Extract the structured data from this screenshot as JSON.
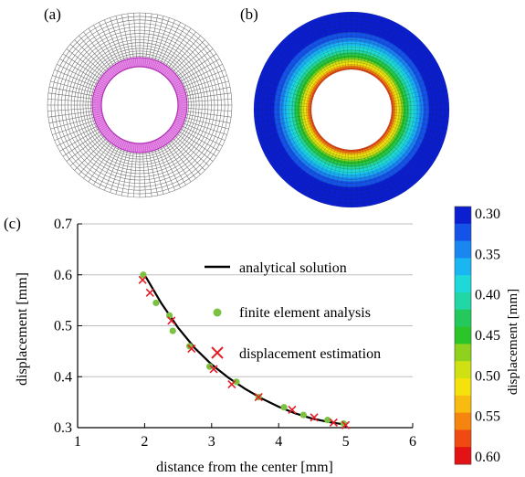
{
  "panels": {
    "a": {
      "label": "(a)"
    },
    "b": {
      "label": "(b)"
    },
    "c": {
      "label": "(c)"
    }
  },
  "colorbar": {
    "title": "displacement [mm]",
    "ticks": [
      "0.30",
      "0.35",
      "0.40",
      "0.45",
      "0.50",
      "0.55",
      "0.60"
    ],
    "colors": [
      "#0b1fd0",
      "#1553e8",
      "#1a86f0",
      "#19b6f2",
      "#1fd8d8",
      "#22d6a6",
      "#23c95b",
      "#2bc52a",
      "#8fd21d",
      "#cfe013",
      "#f5e20d",
      "#f8bb0f",
      "#f68510",
      "#ef4a12",
      "#e31214"
    ]
  },
  "chart_data": {
    "type": "line",
    "title": "",
    "xlabel": "distance from the center [mm]",
    "ylabel": "displacement [mm]",
    "xlim": [
      1,
      6
    ],
    "ylim": [
      0.3,
      0.7
    ],
    "xticks": [
      "1",
      "2",
      "3",
      "4",
      "5",
      "6"
    ],
    "yticks": [
      "0.3",
      "0.4",
      "0.5",
      "0.6",
      "0.7"
    ],
    "grid": "horizontal",
    "legend_position": "right",
    "series": [
      {
        "name": "analytical solution",
        "kind": "line",
        "color": "#000000",
        "x": [
          2.0,
          2.25,
          2.5,
          2.75,
          3.0,
          3.25,
          3.5,
          3.75,
          4.0,
          4.25,
          4.5,
          4.75,
          5.0
        ],
        "y": [
          0.6,
          0.544,
          0.496,
          0.456,
          0.424,
          0.398,
          0.376,
          0.357,
          0.341,
          0.328,
          0.318,
          0.311,
          0.306
        ]
      },
      {
        "name": "finite element analysis",
        "kind": "marker-dot",
        "color": "#7cc242",
        "x": [
          1.98,
          2.17,
          2.37,
          2.42,
          2.67,
          2.97,
          3.37,
          3.7,
          4.08,
          4.37,
          4.73,
          4.97
        ],
        "y": [
          0.6,
          0.545,
          0.52,
          0.49,
          0.46,
          0.42,
          0.39,
          0.36,
          0.34,
          0.325,
          0.315,
          0.308
        ]
      },
      {
        "name": "displacement estimation",
        "kind": "marker-x",
        "color": "#e21e26",
        "x": [
          1.97,
          2.08,
          2.4,
          2.7,
          3.03,
          3.3,
          3.7,
          4.2,
          4.53,
          4.82,
          5.0
        ],
        "y": [
          0.59,
          0.565,
          0.51,
          0.455,
          0.415,
          0.385,
          0.36,
          0.335,
          0.32,
          0.31,
          0.305
        ]
      }
    ]
  }
}
